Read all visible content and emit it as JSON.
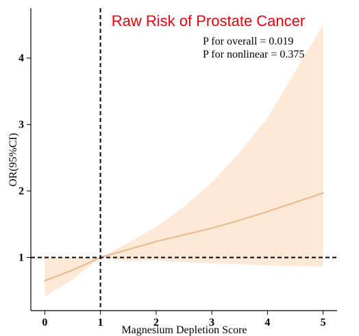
{
  "chart_data": {
    "type": "line",
    "title": "Raw Risk of Prostate Cancer",
    "xlabel": "Magnesium Depletion Score",
    "ylabel": "OR(95%CI)",
    "xlim": [
      -0.25,
      5.25
    ],
    "ylim": [
      0.2,
      4.75
    ],
    "x_ticks": [
      0,
      1,
      2,
      3,
      4,
      5
    ],
    "y_ticks": [
      1,
      2,
      3,
      4
    ],
    "annotations": [
      "P for overall = 0.019",
      "P for nonlinear = 0.375"
    ],
    "reference_lines": {
      "x": 1,
      "y": 1
    },
    "grid": false,
    "colors": {
      "title": "#e8000b",
      "line": "#e9b98e",
      "band": "#fde9d6",
      "reference": "#000000",
      "axis": "#000000"
    },
    "series": [
      {
        "x": [
          0,
          0.5,
          1,
          1.5,
          2,
          2.5,
          3,
          3.5,
          4,
          4.5,
          5
        ],
        "values": [
          0.65,
          0.81,
          1.0,
          1.12,
          1.24,
          1.34,
          1.44,
          1.56,
          1.69,
          1.83,
          1.97
        ],
        "lower": [
          0.41,
          0.67,
          1.0,
          0.94,
          0.96,
          0.93,
          0.91,
          0.9,
          0.88,
          0.87,
          0.86
        ],
        "upper": [
          1.0,
          1.0,
          1.0,
          1.22,
          1.46,
          1.76,
          2.13,
          2.58,
          3.1,
          3.8,
          4.5
        ]
      }
    ]
  }
}
